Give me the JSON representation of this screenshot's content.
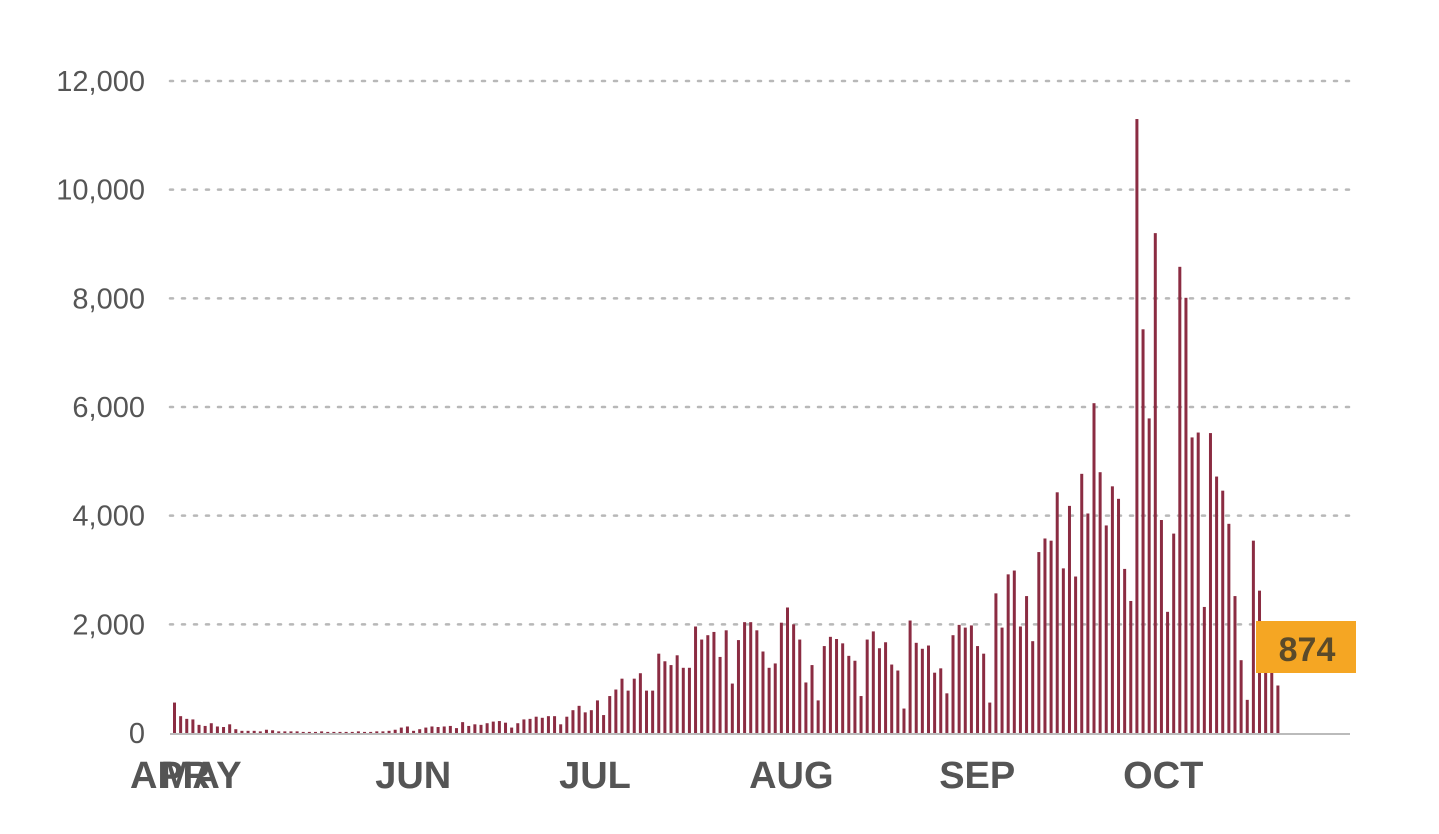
{
  "chart_data": {
    "type": "bar",
    "ylim": [
      0,
      12000
    ],
    "yticks": [
      0,
      2000,
      4000,
      6000,
      8000,
      10000,
      12000
    ],
    "ytick_labels": [
      "0",
      "2,000",
      "4,000",
      "6,000",
      "8,000",
      "10,000",
      "12,000"
    ],
    "grid": "horizontal-dotted",
    "x_month_labels": [
      "APR",
      "MAY",
      "JUN",
      "JUL",
      "AUG",
      "SEP",
      "OCT"
    ],
    "x_month_start_index": [
      0,
      5,
      40,
      70,
      101,
      132,
      162
    ],
    "values": [
      560,
      310,
      260,
      250,
      150,
      130,
      180,
      120,
      110,
      160,
      70,
      40,
      40,
      40,
      30,
      60,
      50,
      30,
      30,
      30,
      30,
      20,
      20,
      20,
      30,
      20,
      20,
      20,
      20,
      20,
      30,
      20,
      20,
      30,
      30,
      40,
      60,
      100,
      120,
      40,
      70,
      100,
      120,
      110,
      120,
      130,
      90,
      200,
      130,
      160,
      150,
      180,
      210,
      220,
      190,
      100,
      180,
      250,
      260,
      300,
      280,
      310,
      310,
      160,
      300,
      420,
      500,
      380,
      420,
      600,
      330,
      680,
      800,
      1000,
      780,
      1000,
      1100,
      780,
      780,
      1460,
      1320,
      1250,
      1430,
      1200,
      1200,
      1960,
      1720,
      1800,
      1860,
      1400,
      1890,
      910,
      1710,
      2040,
      2040,
      1890,
      1500,
      1200,
      1280,
      2030,
      2310,
      2000,
      1720,
      930,
      1250,
      600,
      1600,
      1770,
      1730,
      1650,
      1420,
      1330,
      680,
      1720,
      1870,
      1560,
      1670,
      1260,
      1150,
      450,
      2070,
      1660,
      1550,
      1610,
      1110,
      1190,
      730,
      1800,
      1990,
      1940,
      1980,
      1600,
      1460,
      560,
      2570,
      1940,
      2920,
      2990,
      1960,
      2520,
      1690,
      3330,
      3580,
      3540,
      4430,
      3030,
      4180,
      2880,
      4770,
      4040,
      6070,
      4800,
      3820,
      4540,
      4310,
      3020,
      2430,
      11300,
      7430,
      5790,
      9200,
      3920,
      2230,
      3670,
      8580,
      8010,
      5440,
      5530,
      2320,
      5520,
      4720,
      4460,
      3850,
      2520,
      1340,
      610,
      3540,
      2620,
      1550,
      1420,
      874
    ],
    "bar_color": "#8b2c42",
    "highlight_label": "874",
    "highlight_color": "#f5a623"
  }
}
